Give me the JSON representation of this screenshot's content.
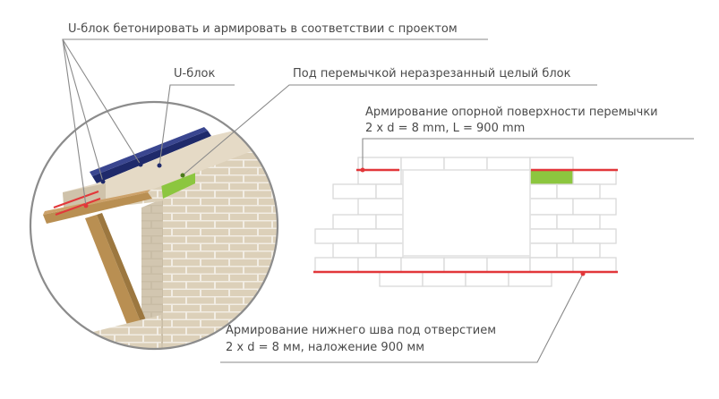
{
  "labels": {
    "u_block_concrete": "U-блок бетонировать и армировать в соответствии с проектом",
    "u_block": "U-блок",
    "uncut_block": "Под перемычкой неразрезанный целый блок",
    "bearing_line1": "Армирование опорной поверхности перемычки",
    "bearing_line2": "2 x d = 8 mm, L = 900 mm",
    "bottom_line1": "Армирование нижнего шва под отверстием",
    "bottom_line2": "2 x d = 8 мм, наложение 900 мм"
  },
  "colors": {
    "text": "#4a4a4a",
    "leader": "#8a8a8a",
    "rebar": "#e2373a",
    "u_block": "#1f2a6b",
    "uncut_block": "#8cc63f",
    "brick": "#ddd2bd",
    "brick_mortar": "#f3eee5",
    "wood": "#b98f52",
    "wall_outline": "#d9d9d9",
    "circle": "#8c8c8c"
  }
}
